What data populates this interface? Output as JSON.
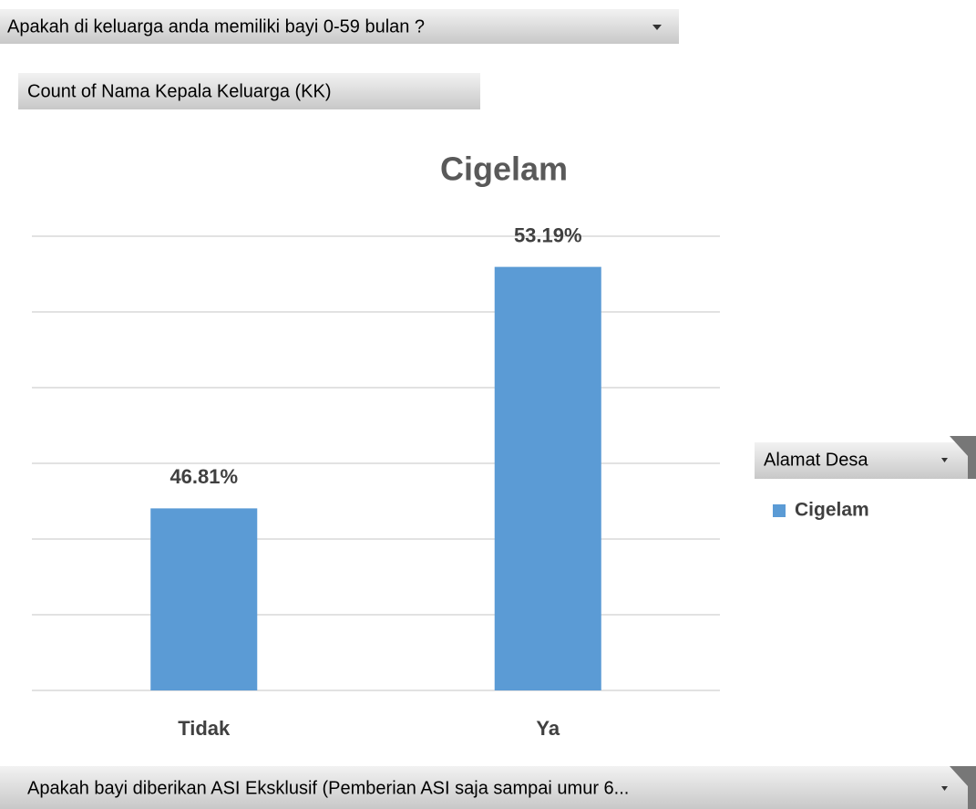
{
  "report_filter": "Apakah di keluarga anda memiliki bayi 0-59 bulan ?",
  "value_field": "Count of Nama Kepala Keluarga (KK)",
  "axis_field": "Apakah bayi diberikan ASI Eksklusif (Pemberian ASI saja sampai umur 6...",
  "chart_data": {
    "type": "bar",
    "title": "Cigelam",
    "categories": [
      "Tidak",
      "Ya"
    ],
    "series": [
      {
        "name": "Cigelam",
        "color": "#5b9bd5",
        "values": [
          46.81,
          53.19
        ],
        "value_labels": [
          "46.81%",
          "53.19%"
        ]
      }
    ],
    "ylim": [
      42,
      54
    ],
    "yticks": [
      42,
      44,
      46,
      48,
      50,
      52,
      54
    ],
    "grid": true,
    "legend_title": "Alamat Desa",
    "legend": "right"
  }
}
